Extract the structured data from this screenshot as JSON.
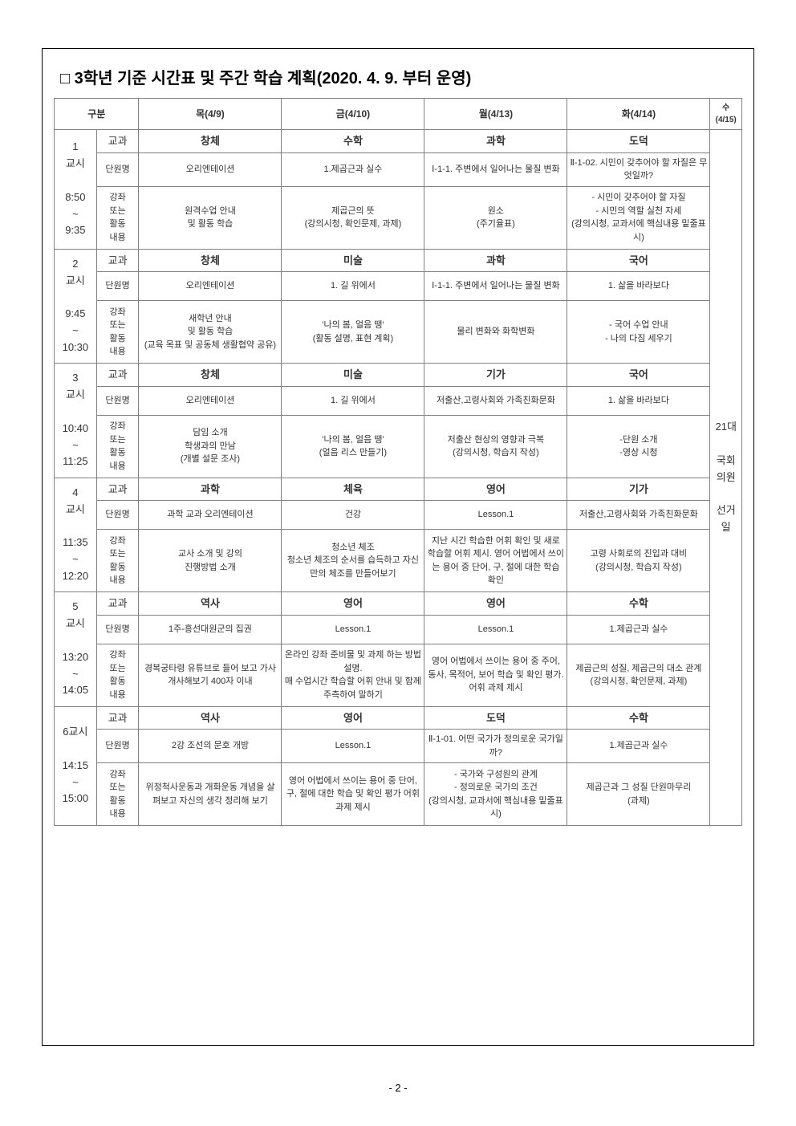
{
  "title": "□ 3학년 기준 시간표 및 주간 학습 계획(2020. 4. 9. 부터 운영)",
  "header": {
    "gubun": "구분",
    "days": [
      "목(4/9)",
      "금(4/10)",
      "월(4/13)",
      "화(4/14)"
    ],
    "wed": "수\n(4/15)"
  },
  "rowLabels": {
    "subject": "교과",
    "unit": "단원명",
    "activity": "강좌\n또는\n활동\n내용"
  },
  "periods": [
    {
      "label": "1\n교시\n\n8:50\n~\n9:35",
      "subject": [
        "창체",
        "수학",
        "과학",
        "도덕"
      ],
      "unit": [
        "오리엔테이션",
        "1.제곱근과 실수",
        "Ⅰ-1-1. 주변에서 일어나는 물질 변화",
        "Ⅱ-1-02. 시민이 갖추어야 할 자질은 무엇일까?"
      ],
      "activity": [
        "원격수업 안내\n및 활동 학습",
        "제곱근의 뜻\n(강의시청, 확인문제, 과제)",
        "원소\n(주기율표)",
        "- 시민이 갖추어야 할 자질\n- 시민의 역할 실천 자세\n(강의시청, 교과서에 핵심내용 밑줄표시)"
      ]
    },
    {
      "label": "2\n교시\n\n9:45\n~\n10:30",
      "subject": [
        "창체",
        "미술",
        "과학",
        "국어"
      ],
      "unit": [
        "오리엔테이션",
        "1. 길 위에서",
        "Ⅰ-1-1. 주변에서 일어나는 물질 변화",
        "1. 삶을 바라보다"
      ],
      "activity": [
        "새학년 안내\n및 활동 학습\n(교육 목표 및 공동체 생활협약 공유)",
        "'나의 봄, 얼음 땡'\n(활동 설명, 표현 계획)",
        "물리 변화와 화학변화",
        "- 국어 수업 안내\n- 나의 다짐 세우기"
      ]
    },
    {
      "label": "3\n교시\n\n10:40\n~\n11:25",
      "subject": [
        "창체",
        "미술",
        "기가",
        "국어"
      ],
      "unit": [
        "오리엔테이션",
        "1. 길 위에서",
        "저출산,고령사회와 가족친화문화",
        "1. 삶을 바라보다"
      ],
      "activity": [
        "담임 소개\n학생과의 만남\n(개별 설문 조사)",
        "'나의 봄, 얼음 땡'\n(얼음 리스 만들기)",
        "저출산 현상의 영향과 극복\n(강의시청, 학습지 작성)",
        "-단원 소개\n-영상 시청"
      ]
    },
    {
      "label": "4\n교시\n\n11:35\n~\n12:20",
      "subject": [
        "과학",
        "체육",
        "영어",
        "기가"
      ],
      "unit": [
        "과학 교과 오리엔테이션",
        "건강",
        "Lesson.1",
        "저출산,고령사회와 가족친화문화"
      ],
      "activity": [
        "교사 소개 및 강의\n진행방법 소개",
        "청소년 체조\n청소년 체조의 순서를 습득하고 자신만의 체조를 만들어보기",
        "지난 시간 학습한 어휘 확인 및 새로 학습할 어휘 제시. 영어 어법에서 쓰이는 용어 중 단어, 구, 절에 대한 학습 확인",
        "고령 사회로의 진입과 대비\n(강의시청, 학습지 작성)"
      ]
    },
    {
      "label": "5\n교시\n\n13:20\n~\n14:05",
      "subject": [
        "역사",
        "영어",
        "영어",
        "수학"
      ],
      "unit": [
        "1주-흥선대원군의 집권",
        "Lesson.1",
        "Lesson.1",
        "1.제곱근과 실수"
      ],
      "activity": [
        "경복궁타령 유튜브로 들어 보고 가사 개사해보기 400자 이내",
        "온라인 강좌 준비물 및 과제 하는 방법 설명.\n매 수업시간 학습할 어휘 안내 및 함께 주측하여 말하기",
        "영어 어법에서 쓰이는 용어 중 주어, 동사, 목적어, 보어 학습 및 확인 평가. 어휘 과제 제시",
        "제곱근의 성질, 제곱근의 대소 관계\n(강의시청, 확인문제, 과제)"
      ]
    },
    {
      "label": "6교시\n\n14:15\n~\n15:00",
      "subject": [
        "역사",
        "영어",
        "도덕",
        "수학"
      ],
      "unit": [
        "2강 조선의 문호 개방",
        "Lesson.1",
        "Ⅱ-1-01. 어떤 국가가 정의로운 국가일까?",
        "1.제곱근과 실수"
      ],
      "activity": [
        "위정척사운동과 개화운동 개념을 살펴보고 자신의 생각 정리해 보기",
        "영어 어법에서 쓰이는 용어 중 단어, 구, 절에 대한 학습 및 확인 평가 어휘 과제 제시",
        "- 국가와 구성원의 관계\n- 정의로운 국가의 조건\n(강의시청, 교과서에 핵심내용 밑줄표시)",
        "제곱근과 그 성질 단원마무리\n(과제)"
      ]
    }
  ],
  "wedContent": "21대\n\n국회\n의원\n\n선거\n일",
  "pageNumber": "- 2 -"
}
